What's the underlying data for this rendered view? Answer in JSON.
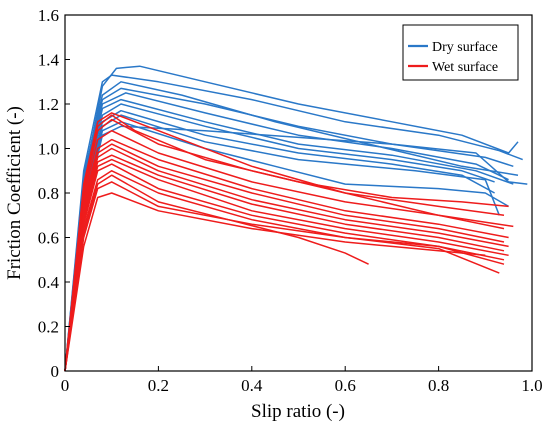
{
  "chart_data": {
    "type": "line",
    "title": "",
    "xlabel": "Slip ratio (-)",
    "ylabel": "Friction Coefficient (-)",
    "xlim": [
      0,
      1.0
    ],
    "ylim": [
      0,
      1.6
    ],
    "xticks": [
      0,
      0.2,
      0.4,
      0.6,
      0.8,
      1.0
    ],
    "yticks": [
      0,
      0.2,
      0.4,
      0.6,
      0.8,
      1.0,
      1.2,
      1.4,
      1.6
    ],
    "xtick_labels": [
      "0",
      "0.2",
      "0.4",
      "0.6",
      "0.8",
      "1.0"
    ],
    "ytick_labels": [
      "0",
      "0.2",
      "0.4",
      "0.6",
      "0.8",
      "1.0",
      "1.2",
      "1.4",
      "1.6"
    ],
    "grid": false,
    "legend_position": "top-right",
    "colors": {
      "dry": "#2a78c8",
      "wet": "#ee1c1c"
    },
    "series": [
      {
        "group": "Dry surface",
        "points": [
          [
            0,
            0
          ],
          [
            0.04,
            0.85
          ],
          [
            0.08,
            1.28
          ],
          [
            0.11,
            1.36
          ],
          [
            0.16,
            1.37
          ],
          [
            0.3,
            1.3
          ],
          [
            0.5,
            1.2
          ],
          [
            0.7,
            1.12
          ],
          [
            0.85,
            1.06
          ],
          [
            0.95,
            0.98
          ],
          [
            0.97,
            1.03
          ]
        ]
      },
      {
        "group": "Dry surface",
        "points": [
          [
            0,
            0
          ],
          [
            0.04,
            0.9
          ],
          [
            0.08,
            1.3
          ],
          [
            0.1,
            1.33
          ],
          [
            0.2,
            1.3
          ],
          [
            0.4,
            1.22
          ],
          [
            0.6,
            1.12
          ],
          [
            0.8,
            1.06
          ],
          [
            0.93,
            0.99
          ],
          [
            0.98,
            0.95
          ]
        ]
      },
      {
        "group": "Dry surface",
        "points": [
          [
            0,
            0
          ],
          [
            0.04,
            0.88
          ],
          [
            0.08,
            1.24
          ],
          [
            0.12,
            1.3
          ],
          [
            0.25,
            1.24
          ],
          [
            0.45,
            1.12
          ],
          [
            0.65,
            1.02
          ],
          [
            0.85,
            0.92
          ],
          [
            0.97,
            0.88
          ]
        ]
      },
      {
        "group": "Dry surface",
        "points": [
          [
            0,
            0
          ],
          [
            0.04,
            0.86
          ],
          [
            0.08,
            1.22
          ],
          [
            0.12,
            1.27
          ],
          [
            0.3,
            1.2
          ],
          [
            0.5,
            1.1
          ],
          [
            0.7,
            1.02
          ],
          [
            0.9,
            0.96
          ],
          [
            0.96,
            0.92
          ]
        ]
      },
      {
        "group": "Dry surface",
        "points": [
          [
            0,
            0
          ],
          [
            0.04,
            0.82
          ],
          [
            0.08,
            1.2
          ],
          [
            0.13,
            1.25
          ],
          [
            0.3,
            1.16
          ],
          [
            0.5,
            1.06
          ],
          [
            0.7,
            1.0
          ],
          [
            0.88,
            0.93
          ],
          [
            0.95,
            0.86
          ]
        ]
      },
      {
        "group": "Dry surface",
        "points": [
          [
            0,
            0
          ],
          [
            0.04,
            0.8
          ],
          [
            0.08,
            1.18
          ],
          [
            0.12,
            1.22
          ],
          [
            0.3,
            1.12
          ],
          [
            0.5,
            1.02
          ],
          [
            0.7,
            0.97
          ],
          [
            0.88,
            0.9
          ],
          [
            0.96,
            0.84
          ]
        ]
      },
      {
        "group": "Dry surface",
        "points": [
          [
            0,
            0
          ],
          [
            0.04,
            0.78
          ],
          [
            0.08,
            1.15
          ],
          [
            0.12,
            1.2
          ],
          [
            0.3,
            1.1
          ],
          [
            0.5,
            1.0
          ],
          [
            0.7,
            0.95
          ],
          [
            0.85,
            0.9
          ],
          [
            0.92,
            0.85
          ]
        ]
      },
      {
        "group": "Dry surface",
        "points": [
          [
            0,
            0
          ],
          [
            0.04,
            0.76
          ],
          [
            0.08,
            1.12
          ],
          [
            0.12,
            1.17
          ],
          [
            0.3,
            1.06
          ],
          [
            0.5,
            0.98
          ],
          [
            0.7,
            0.93
          ],
          [
            0.85,
            0.88
          ],
          [
            0.92,
            0.8
          ]
        ]
      },
      {
        "group": "Dry surface",
        "points": [
          [
            0,
            0
          ],
          [
            0.04,
            0.74
          ],
          [
            0.08,
            1.1
          ],
          [
            0.12,
            1.15
          ],
          [
            0.3,
            1.03
          ],
          [
            0.5,
            0.95
          ],
          [
            0.6,
            0.93
          ],
          [
            0.75,
            0.9
          ],
          [
            0.9,
            0.86
          ],
          [
            0.93,
            0.7
          ]
        ]
      },
      {
        "group": "Dry surface",
        "points": [
          [
            0,
            0
          ],
          [
            0.04,
            0.72
          ],
          [
            0.08,
            1.08
          ],
          [
            0.12,
            1.12
          ],
          [
            0.3,
            1.0
          ],
          [
            0.45,
            0.92
          ],
          [
            0.6,
            0.84
          ],
          [
            0.8,
            0.82
          ],
          [
            0.9,
            0.8
          ],
          [
            0.95,
            0.74
          ]
        ]
      },
      {
        "group": "Dry surface",
        "points": [
          [
            0,
            0
          ],
          [
            0.04,
            0.7
          ],
          [
            0.08,
            1.06
          ],
          [
            0.12,
            1.1
          ],
          [
            0.3,
            1.08
          ],
          [
            0.5,
            1.05
          ],
          [
            0.7,
            1.02
          ],
          [
            0.88,
            0.98
          ],
          [
            0.95,
            0.85
          ],
          [
            0.99,
            0.84
          ]
        ]
      },
      {
        "group": "Wet surface",
        "points": [
          [
            0,
            0
          ],
          [
            0.04,
            0.82
          ],
          [
            0.07,
            1.1
          ],
          [
            0.1,
            1.15
          ],
          [
            0.15,
            1.08
          ],
          [
            0.3,
            0.95
          ],
          [
            0.5,
            0.85
          ],
          [
            0.7,
            0.78
          ],
          [
            0.85,
            0.76
          ],
          [
            0.95,
            0.74
          ]
        ]
      },
      {
        "group": "Wet surface",
        "points": [
          [
            0,
            0
          ],
          [
            0.04,
            0.8
          ],
          [
            0.07,
            1.08
          ],
          [
            0.1,
            1.13
          ],
          [
            0.2,
            1.02
          ],
          [
            0.4,
            0.9
          ],
          [
            0.6,
            0.8
          ],
          [
            0.8,
            0.74
          ],
          [
            0.94,
            0.7
          ]
        ]
      },
      {
        "group": "Wet surface",
        "points": [
          [
            0,
            0
          ],
          [
            0.04,
            0.78
          ],
          [
            0.07,
            1.04
          ],
          [
            0.1,
            1.08
          ],
          [
            0.2,
            0.98
          ],
          [
            0.4,
            0.85
          ],
          [
            0.6,
            0.76
          ],
          [
            0.8,
            0.7
          ],
          [
            0.94,
            0.64
          ]
        ]
      },
      {
        "group": "Wet surface",
        "points": [
          [
            0,
            0
          ],
          [
            0.04,
            0.76
          ],
          [
            0.07,
            1.0
          ],
          [
            0.1,
            1.04
          ],
          [
            0.2,
            0.95
          ],
          [
            0.4,
            0.82
          ],
          [
            0.6,
            0.72
          ],
          [
            0.8,
            0.66
          ],
          [
            0.95,
            0.6
          ]
        ]
      },
      {
        "group": "Wet surface",
        "points": [
          [
            0,
            0
          ],
          [
            0.04,
            0.74
          ],
          [
            0.07,
            0.98
          ],
          [
            0.1,
            1.02
          ],
          [
            0.2,
            0.92
          ],
          [
            0.4,
            0.8
          ],
          [
            0.6,
            0.7
          ],
          [
            0.8,
            0.64
          ],
          [
            0.94,
            0.58
          ]
        ]
      },
      {
        "group": "Wet surface",
        "points": [
          [
            0,
            0
          ],
          [
            0.04,
            0.72
          ],
          [
            0.07,
            0.96
          ],
          [
            0.1,
            1.0
          ],
          [
            0.2,
            0.9
          ],
          [
            0.4,
            0.77
          ],
          [
            0.6,
            0.68
          ],
          [
            0.8,
            0.62
          ],
          [
            0.95,
            0.56
          ]
        ]
      },
      {
        "group": "Wet surface",
        "points": [
          [
            0,
            0
          ],
          [
            0.04,
            0.7
          ],
          [
            0.07,
            0.94
          ],
          [
            0.1,
            0.97
          ],
          [
            0.2,
            0.88
          ],
          [
            0.4,
            0.75
          ],
          [
            0.6,
            0.66
          ],
          [
            0.8,
            0.6
          ],
          [
            0.94,
            0.54
          ]
        ]
      },
      {
        "group": "Wet surface",
        "points": [
          [
            0,
            0
          ],
          [
            0.04,
            0.68
          ],
          [
            0.07,
            0.92
          ],
          [
            0.1,
            0.95
          ],
          [
            0.2,
            0.86
          ],
          [
            0.4,
            0.72
          ],
          [
            0.6,
            0.64
          ],
          [
            0.8,
            0.58
          ],
          [
            0.95,
            0.52
          ]
        ]
      },
      {
        "group": "Wet surface",
        "points": [
          [
            0,
            0
          ],
          [
            0.04,
            0.66
          ],
          [
            0.07,
            0.9
          ],
          [
            0.1,
            0.93
          ],
          [
            0.2,
            0.82
          ],
          [
            0.4,
            0.7
          ],
          [
            0.6,
            0.62
          ],
          [
            0.8,
            0.56
          ],
          [
            0.94,
            0.48
          ]
        ]
      },
      {
        "group": "Wet surface",
        "points": [
          [
            0,
            0
          ],
          [
            0.04,
            0.64
          ],
          [
            0.07,
            0.86
          ],
          [
            0.1,
            0.9
          ],
          [
            0.2,
            0.8
          ],
          [
            0.4,
            0.68
          ],
          [
            0.6,
            0.6
          ],
          [
            0.8,
            0.55
          ],
          [
            0.93,
            0.44
          ]
        ]
      },
      {
        "group": "Wet surface",
        "points": [
          [
            0,
            0
          ],
          [
            0.04,
            0.62
          ],
          [
            0.07,
            0.84
          ],
          [
            0.1,
            0.88
          ],
          [
            0.2,
            0.76
          ],
          [
            0.35,
            0.68
          ],
          [
            0.5,
            0.6
          ],
          [
            0.6,
            0.53
          ],
          [
            0.65,
            0.48
          ]
        ]
      },
      {
        "group": "Wet surface",
        "points": [
          [
            0,
            0
          ],
          [
            0.04,
            0.6
          ],
          [
            0.07,
            0.82
          ],
          [
            0.1,
            0.85
          ],
          [
            0.2,
            0.74
          ],
          [
            0.4,
            0.66
          ],
          [
            0.6,
            0.6
          ],
          [
            0.8,
            0.56
          ],
          [
            0.94,
            0.5
          ]
        ]
      },
      {
        "group": "Wet surface",
        "points": [
          [
            0,
            0
          ],
          [
            0.04,
            0.56
          ],
          [
            0.07,
            0.78
          ],
          [
            0.1,
            0.8
          ],
          [
            0.2,
            0.72
          ],
          [
            0.4,
            0.64
          ],
          [
            0.6,
            0.58
          ],
          [
            0.8,
            0.54
          ],
          [
            0.9,
            0.52
          ]
        ]
      },
      {
        "group": "Wet surface",
        "points": [
          [
            0,
            0
          ],
          [
            0.04,
            0.84
          ],
          [
            0.07,
            1.12
          ],
          [
            0.1,
            1.16
          ],
          [
            0.2,
            1.08
          ],
          [
            0.4,
            0.92
          ],
          [
            0.6,
            0.8
          ],
          [
            0.8,
            0.7
          ],
          [
            0.96,
            0.65
          ]
        ]
      }
    ],
    "legend": [
      {
        "label": "Dry surface",
        "color": "#2a78c8"
      },
      {
        "label": "Wet surface",
        "color": "#ee1c1c"
      }
    ]
  }
}
